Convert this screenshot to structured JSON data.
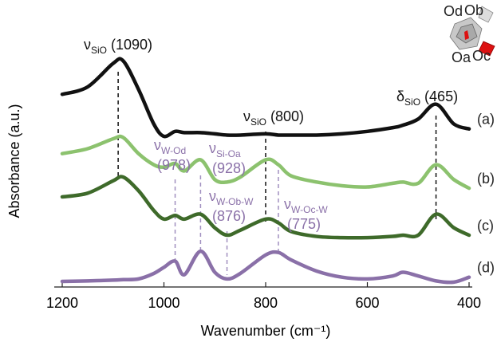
{
  "chart_data": {
    "type": "line",
    "xlabel": "Wavenumber (cm⁻¹)",
    "ylabel": "Absorbance  (a.u.)",
    "xlim": [
      1200,
      400
    ],
    "xticks": [
      1200,
      1000,
      800,
      600,
      400
    ],
    "ylim": [
      0,
      10
    ],
    "x": [
      1200,
      1150,
      1100,
      1080,
      1050,
      1020,
      1000,
      978,
      960,
      928,
      900,
      876,
      850,
      800,
      775,
      750,
      700,
      650,
      600,
      550,
      530,
      500,
      465,
      430,
      400
    ],
    "series": [
      {
        "name": "(a)",
        "color": "#111111",
        "values": [
          7.7,
          8.0,
          8.95,
          9.05,
          7.9,
          6.5,
          6.0,
          6.2,
          6.15,
          6.15,
          6.1,
          6.05,
          6.05,
          6.1,
          6.05,
          6.05,
          6.05,
          6.1,
          6.2,
          6.35,
          6.45,
          6.7,
          7.3,
          6.5,
          6.3
        ]
      },
      {
        "name": "(b)",
        "color": "#8cc26e",
        "values": [
          5.3,
          5.5,
          5.9,
          5.95,
          5.3,
          4.85,
          4.75,
          4.9,
          4.6,
          5.05,
          4.25,
          4.15,
          4.35,
          5.05,
          4.85,
          4.4,
          4.15,
          4.0,
          3.95,
          4.1,
          4.15,
          4.1,
          4.85,
          4.25,
          3.9
        ]
      },
      {
        "name": "(c)",
        "color": "#3e6a2a",
        "values": [
          3.55,
          3.7,
          4.2,
          4.35,
          3.8,
          3.0,
          2.65,
          2.8,
          2.65,
          2.85,
          2.3,
          2.0,
          2.2,
          2.65,
          2.5,
          2.15,
          1.95,
          1.9,
          1.9,
          1.95,
          2.0,
          2.0,
          2.85,
          2.3,
          2.0
        ]
      },
      {
        "name": "(d)",
        "color": "#8a70a8",
        "values": [
          0.13,
          0.15,
          0.18,
          0.2,
          0.23,
          0.45,
          0.7,
          0.95,
          0.4,
          1.35,
          0.5,
          0.23,
          0.45,
          1.2,
          1.3,
          1.0,
          0.55,
          0.3,
          0.23,
          0.35,
          0.5,
          0.35,
          0.15,
          0.1,
          0.3
        ]
      }
    ],
    "annotations": [
      {
        "symbol": "ν",
        "sub": "SiO",
        "label": "(1090)",
        "x": 1090,
        "color": "#111111"
      },
      {
        "symbol": "ν",
        "sub": "W-Od",
        "label": "(978)",
        "x": 978,
        "color": "#8a70a8"
      },
      {
        "symbol": "ν",
        "sub": "Si-Oa",
        "label": "(928)",
        "x": 928,
        "color": "#8a70a8"
      },
      {
        "symbol": "ν",
        "sub": "W-Ob-W",
        "label": "(876)",
        "x": 876,
        "color": "#8a70a8"
      },
      {
        "symbol": "ν",
        "sub": "SiO",
        "label": "(800)",
        "x": 800,
        "color": "#111111"
      },
      {
        "symbol": "ν",
        "sub": "W-Oc-W",
        "label": "(775)",
        "x": 775,
        "color": "#8a70a8"
      },
      {
        "symbol": "δ",
        "sub": "SiO",
        "label": "(465)",
        "x": 465,
        "color": "#111111"
      }
    ],
    "inset_labels": [
      "Od",
      "Ob",
      "Oa",
      "Oc"
    ]
  }
}
